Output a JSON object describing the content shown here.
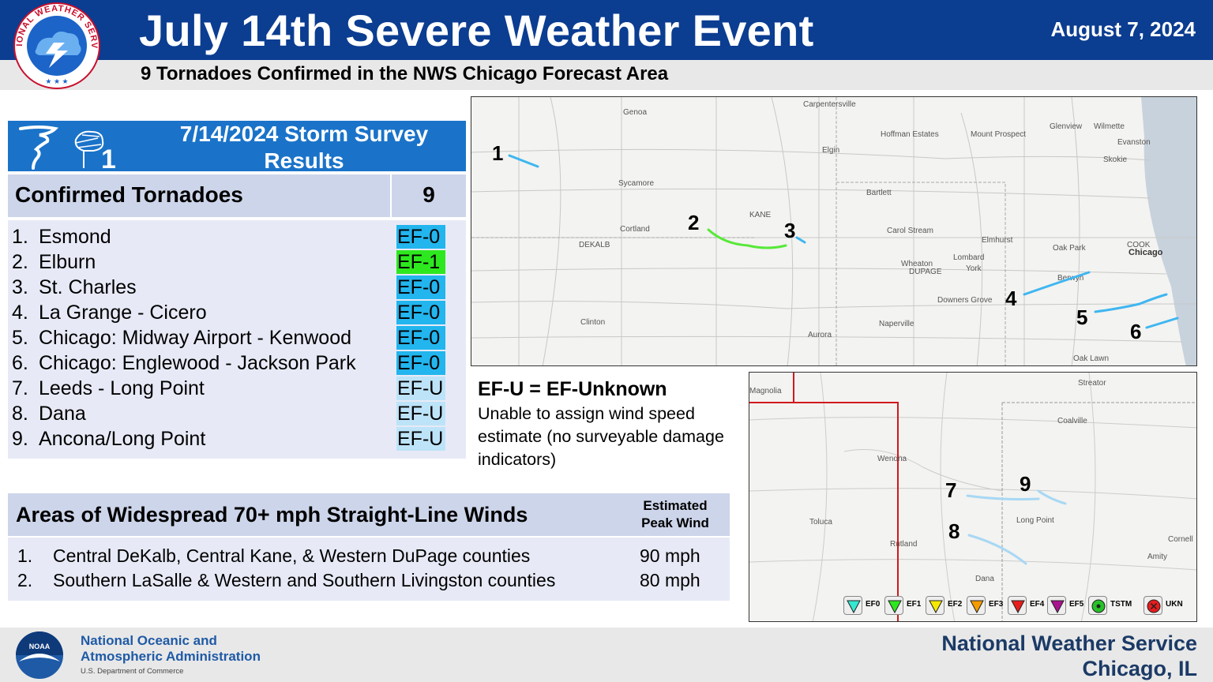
{
  "header": {
    "title": "July 14th Severe Weather Event",
    "date": "August 7, 2024",
    "subtitle": "9 Tornadoes Confirmed in the NWS Chicago Forecast Area",
    "logo_text": "NATIONAL WEATHER SERVICE"
  },
  "survey": {
    "title_line1": "7/14/2024 Storm Survey",
    "title_line2": "Results",
    "confirmed_label": "Confirmed Tornadoes",
    "confirmed_count": "9",
    "tornadoes": [
      {
        "num": "1.",
        "name": "Esmond",
        "rating": "EF-0",
        "color": "#22b5ee"
      },
      {
        "num": "2.",
        "name": "Elburn",
        "rating": "EF-1",
        "color": "#2ee81f"
      },
      {
        "num": "3.",
        "name": "St. Charles",
        "rating": "EF-0",
        "color": "#22b5ee"
      },
      {
        "num": "4.",
        "name": "La Grange - Cicero",
        "rating": "EF-0",
        "color": "#22b5ee"
      },
      {
        "num": "5.",
        "name": "Chicago: Midway Airport - Kenwood",
        "rating": "EF-0",
        "color": "#22b5ee"
      },
      {
        "num": "6.",
        "name": "Chicago: Englewood - Jackson Park",
        "rating": "EF-0",
        "color": "#22b5ee"
      },
      {
        "num": "7.",
        "name": "Leeds - Long Point",
        "rating": "EF-U",
        "color": "#bde3f8"
      },
      {
        "num": "8.",
        "name": "Dana",
        "rating": "EF-U",
        "color": "#bde3f8"
      },
      {
        "num": "9.",
        "name": "Ancona/Long Point",
        "rating": "EF-U",
        "color": "#bde3f8"
      }
    ]
  },
  "efu_note": {
    "title": "EF-U = EF-Unknown",
    "description": "Unable to assign wind speed estimate (no surveyable damage indicators)"
  },
  "winds": {
    "title": "Areas of Widespread 70+ mph Straight-Line Winds",
    "peak_header_line1": "Estimated",
    "peak_header_line2": "Peak Wind",
    "rows": [
      {
        "num": "1.",
        "area": "Central DeKalb, Central Kane, & Western DuPage counties",
        "peak": "90 mph"
      },
      {
        "num": "2.",
        "area": "Southern LaSalle & Western and Southern Livingston counties",
        "peak": "80 mph"
      }
    ]
  },
  "map_north": {
    "places": [
      "Carpentersville",
      "Genoa",
      "Hoffman Estates",
      "Mount Prospect",
      "Glenview",
      "Wilmette",
      "Evanston",
      "Skokie",
      "Elgin",
      "Sycamore",
      "Bartlett",
      "KANE",
      "Cortland",
      "DEKALB",
      "Carol Stream",
      "Elmhurst",
      "COOK",
      "Chicago",
      "Oak Park",
      "Wheaton",
      "DUPAGE",
      "Lombard",
      "York",
      "Berwyn",
      "Downers Grove",
      "Clinton",
      "Naperville",
      "Aurora",
      "Oak Lawn"
    ],
    "track_labels": [
      "1",
      "2",
      "3",
      "4",
      "5",
      "6"
    ]
  },
  "map_south": {
    "places": [
      "Magnolia",
      "Streator",
      "Coalville",
      "Wenona",
      "Toluca",
      "Long Point",
      "Rutland",
      "Cornell",
      "Amity",
      "Dana"
    ],
    "track_labels": [
      "7",
      "8",
      "9"
    ]
  },
  "legend": [
    {
      "label": "EF0",
      "color": "#33e8d0",
      "icon": "triangle-down-icon"
    },
    {
      "label": "EF1",
      "color": "#2ee81f",
      "icon": "triangle-down-icon"
    },
    {
      "label": "EF2",
      "color": "#f5e800",
      "icon": "triangle-down-icon"
    },
    {
      "label": "EF3",
      "color": "#f59b00",
      "icon": "triangle-down-icon"
    },
    {
      "label": "EF4",
      "color": "#e81c1c",
      "icon": "triangle-down-icon"
    },
    {
      "label": "EF5",
      "color": "#a8128f",
      "icon": "triangle-down-icon"
    },
    {
      "label": "TSTM",
      "color": "#27c227",
      "icon": "circle-dot-icon"
    },
    {
      "label": "UKN",
      "color": "#e81c1c",
      "icon": "circle-x-icon"
    }
  ],
  "footer": {
    "noaa_line1": "National Oceanic and",
    "noaa_line2": "Atmospheric Administration",
    "noaa_dept": "U.S. Department of Commerce",
    "noaa_logo_text": "NOAA",
    "nws_line1": "National Weather Service",
    "nws_line2": "Chicago, IL"
  }
}
